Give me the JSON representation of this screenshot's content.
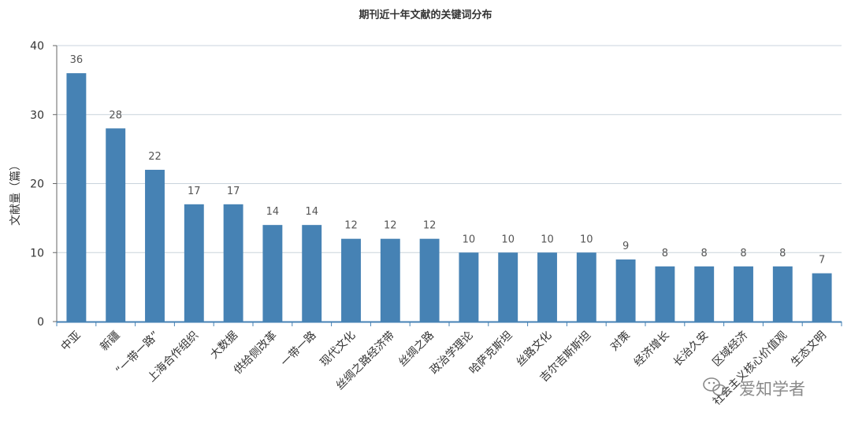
{
  "chart_data": {
    "type": "bar",
    "title": "期刊近十年文献的关键词分布",
    "ylabel": "文献量（篇）",
    "xlabel": "",
    "ylim": [
      0,
      40
    ],
    "yticks": [
      0,
      10,
      20,
      30,
      40
    ],
    "grid": true,
    "categories": [
      "中亚",
      "新疆",
      "“一带一路”",
      "上海合作组织",
      "大数据",
      "供给侧改革",
      "一带一路",
      "现代文化",
      "丝绸之路经济带",
      "丝绸之路",
      "政治学理论",
      "哈萨克斯坦",
      "丝路文化",
      "吉尔吉斯斯坦",
      "对策",
      "经济增长",
      "长治久安",
      "区域经济",
      "社会主义核心价值观",
      "生态文明"
    ],
    "values": [
      36,
      28,
      22,
      17,
      17,
      14,
      14,
      12,
      12,
      12,
      10,
      10,
      10,
      10,
      9,
      8,
      8,
      8,
      8,
      7
    ],
    "bar_color": "#4682b4"
  },
  "watermark": {
    "icon": "wechat-icon",
    "text": "爱知学者"
  }
}
